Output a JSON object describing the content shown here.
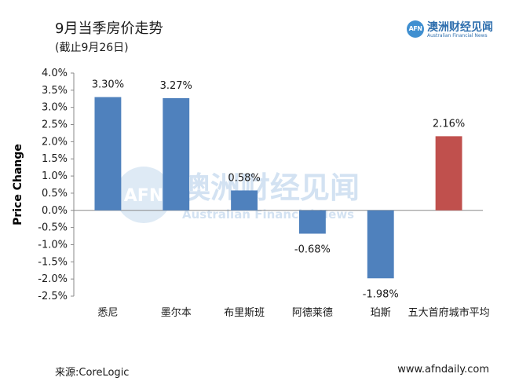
{
  "header": {
    "title": "9月当季房价走势",
    "subtitle": "(截止9月26日)"
  },
  "logo": {
    "badge": "AFN",
    "name_cn": "澳洲财经见闻",
    "name_en": "Australian Financial News"
  },
  "watermark": {
    "badge": "AFN",
    "name_cn": "澳洲财经见闻",
    "name_en": "Australian Financial News"
  },
  "footer": {
    "source": "来源:CoreLogic",
    "website": "www.afndaily.com"
  },
  "chart_data": {
    "type": "bar",
    "ylabel": "Price Change",
    "ylim": [
      -2.5,
      4.0
    ],
    "ytick_step": 0.5,
    "ytick_format": "percent_1dp",
    "categories": [
      "悉尼",
      "墨尔本",
      "布里斯班",
      "阿德莱德",
      "珀斯",
      "五大首府城市平均"
    ],
    "values": [
      3.3,
      3.27,
      0.58,
      -0.68,
      -1.98,
      2.16
    ],
    "labels": [
      "3.30%",
      "3.27%",
      "0.58%",
      "-0.68%",
      "-1.98%",
      "2.16%"
    ],
    "colors": [
      "#4f81bd",
      "#4f81bd",
      "#4f81bd",
      "#4f81bd",
      "#4f81bd",
      "#c0504d"
    ],
    "grid": false,
    "legend": "none"
  }
}
